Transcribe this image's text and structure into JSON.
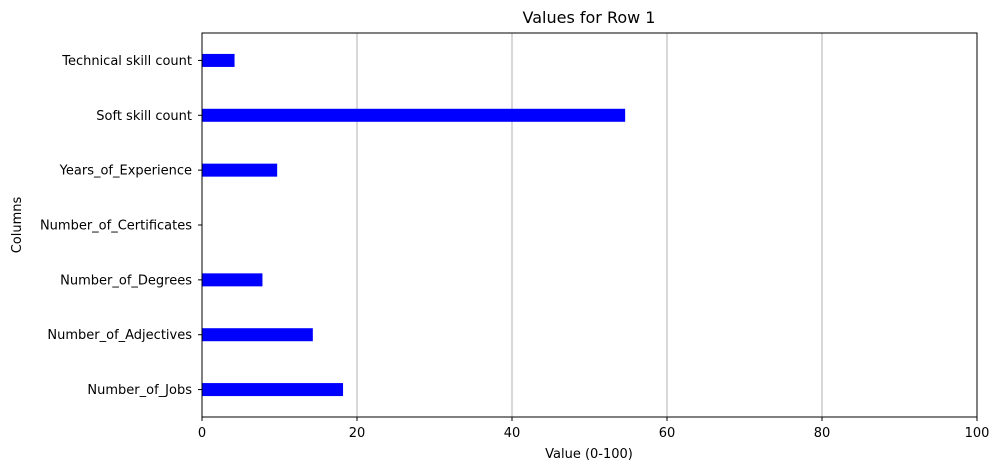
{
  "chart_data": {
    "type": "bar",
    "orientation": "horizontal",
    "title": "Values for Row 1",
    "xlabel": "Value (0-100)",
    "ylabel": "Columns",
    "xlim": [
      0,
      100
    ],
    "xticks": [
      0,
      20,
      40,
      60,
      80,
      100
    ],
    "grid": "vertical",
    "categories": [
      "Technical skill count",
      "Soft skill count",
      "Years_of_Experience",
      "Number_of_Certificates",
      "Number_of_Degrees",
      "Number_of_Adjectives",
      "Number_of_Jobs"
    ],
    "values": [
      4.2,
      54.6,
      9.7,
      0,
      7.8,
      14.3,
      18.2
    ],
    "bar_color": "#0000ff"
  }
}
